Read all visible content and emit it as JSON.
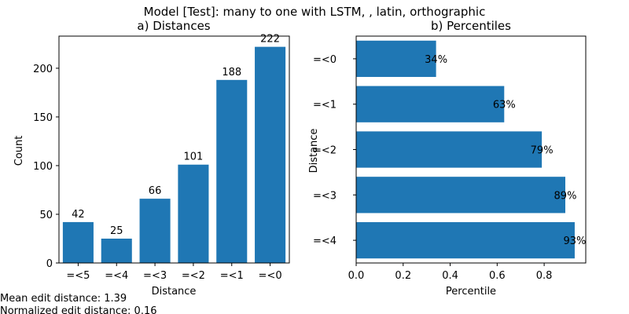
{
  "figure": {
    "suptitle": "Model [Test]: many to one with LSTM, , latin, orthographic",
    "bar_color": "#1f77b4",
    "footer": [
      "Mean edit distance: 1.39",
      "Normalized edit distance: 0.16"
    ]
  },
  "chart_data": [
    {
      "type": "bar",
      "title": "a) Distances",
      "xlabel": "Distance",
      "ylabel": "Count",
      "categories": [
        "=<5",
        "=<4",
        "=<3",
        "=<2",
        "=<1",
        "=<0"
      ],
      "values": [
        42,
        25,
        66,
        101,
        188,
        222
      ],
      "data_labels": [
        "42",
        "25",
        "66",
        "101",
        "188",
        "222"
      ],
      "ylim": [
        0,
        233
      ],
      "yticks": [
        0,
        50,
        100,
        150,
        200
      ],
      "grid": false
    },
    {
      "type": "bar",
      "orientation": "horizontal",
      "title": "b) Percentiles",
      "xlabel": "Percentile",
      "ylabel": "Distance",
      "categories": [
        "=<0",
        "=<1",
        "=<2",
        "=<3",
        "=<4"
      ],
      "values": [
        0.34,
        0.63,
        0.79,
        0.89,
        0.93
      ],
      "data_labels": [
        "34%",
        "63%",
        "79%",
        "89%",
        "93%"
      ],
      "xlim": [
        0,
        0.977
      ],
      "xticks": [
        0.0,
        0.2,
        0.4,
        0.6,
        0.8
      ],
      "xtick_labels": [
        "0.0",
        "0.2",
        "0.4",
        "0.6",
        "0.8"
      ],
      "grid": false
    }
  ]
}
